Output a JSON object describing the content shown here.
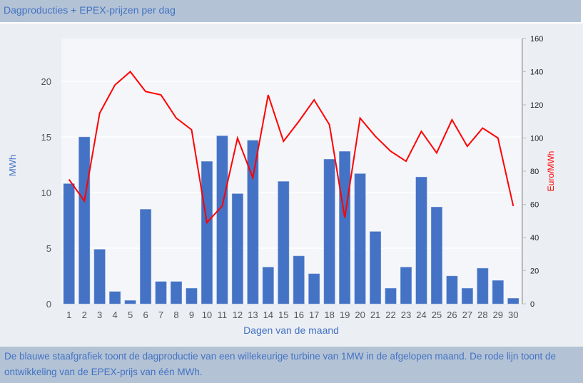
{
  "header": {
    "title": "Dagproducties + EPEX-prijzen per dag"
  },
  "footer": {
    "text": "De blauwe staafgrafiek toont de dagproductie van een willekeurige turbine van 1MW in de afgelopen maand. De rode lijn toont de ontwikkeling van de EPEX-prijs van één MWh."
  },
  "chart_data": {
    "type": "bar+line",
    "xlabel": "Dagen van de maand",
    "ylabel": "MWh",
    "y2label": "Euro/MWh",
    "categories": [
      "1",
      "2",
      "3",
      "4",
      "5",
      "6",
      "7",
      "8",
      "9",
      "10",
      "11",
      "12",
      "13",
      "14",
      "15",
      "16",
      "17",
      "18",
      "19",
      "20",
      "21",
      "22",
      "23",
      "24",
      "25",
      "26",
      "27",
      "28",
      "29",
      "30"
    ],
    "ylim": [
      0,
      23.85
    ],
    "yticks": [
      0,
      5,
      10,
      15,
      20
    ],
    "y2lim": [
      0,
      160
    ],
    "y2ticks": [
      0,
      20,
      40,
      60,
      80,
      100,
      120,
      140,
      160
    ],
    "grid": true,
    "series": [
      {
        "type": "bar",
        "axis": "left",
        "color": "#4472c4",
        "values": [
          10.8,
          15.0,
          4.9,
          1.1,
          0.3,
          8.5,
          2.0,
          2.0,
          1.4,
          12.8,
          15.1,
          9.9,
          14.7,
          3.3,
          11.0,
          4.3,
          2.7,
          13.0,
          13.7,
          11.7,
          6.5,
          1.4,
          3.3,
          11.4,
          8.7,
          2.5,
          1.4,
          3.2,
          2.1,
          0.5
        ]
      },
      {
        "type": "line",
        "axis": "right",
        "color": "#ff0000",
        "values": [
          75,
          62,
          115,
          132,
          140,
          128,
          126,
          112,
          105,
          49,
          59,
          100,
          76,
          126,
          98,
          110,
          123,
          108,
          52,
          112,
          101,
          92,
          86,
          104,
          91,
          111,
          95,
          106,
          100,
          59
        ]
      }
    ]
  }
}
